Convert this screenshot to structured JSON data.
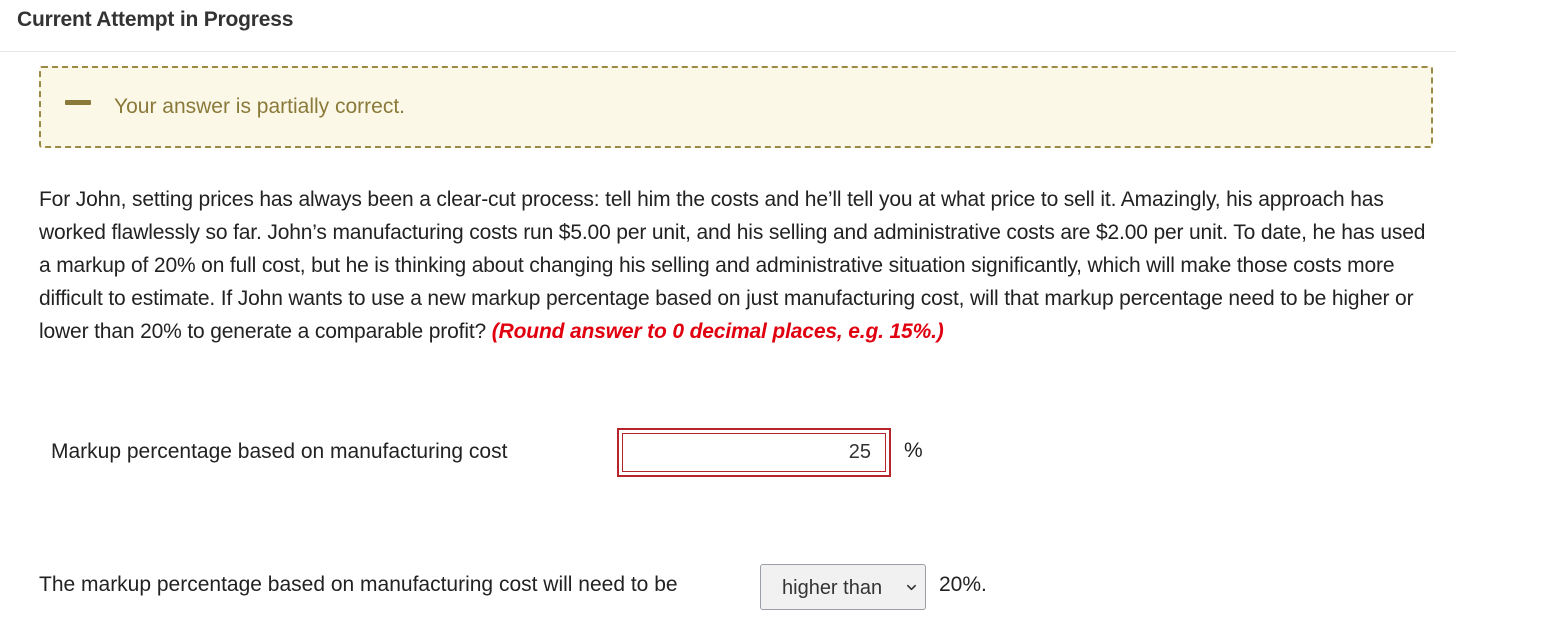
{
  "header": {
    "title": "Current Attempt in Progress"
  },
  "feedback": {
    "icon": "minus-icon",
    "message": "Your answer is partially correct.",
    "color": "#8a7a3a"
  },
  "question": {
    "text": "For John, setting prices has always been a clear-cut process: tell him the costs and he’ll tell you at what price to sell it. Amazingly, his approach has worked flawlessly so far. John’s manufacturing costs run $5.00 per unit, and his selling and administrative costs are $2.00 per unit. To date, he has used a markup of 20% on full cost, but he is thinking about changing his selling and administrative situation significantly, which will make those costs more difficult to estimate. If John wants to use a new markup percentage based on just manufacturing cost, will that markup percentage need to be higher or lower than 20% to generate a comparable profit? ",
    "instruction": "(Round answer to 0 decimal places, e.g. 15%.)",
    "instruction_color": "#e0000f"
  },
  "markup_row": {
    "label": "Markup percentage based on manufacturing cost",
    "value": "25",
    "unit": "%",
    "status_color": "#b5252b"
  },
  "compare_row": {
    "label": "The markup percentage based on manufacturing cost will need to be",
    "selected": "higher than",
    "suffix": "20%."
  }
}
